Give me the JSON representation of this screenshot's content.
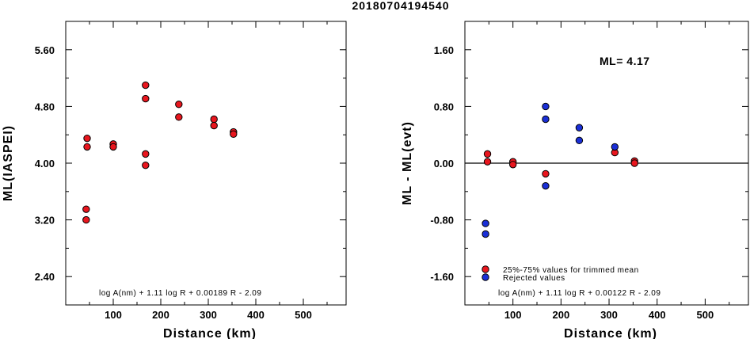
{
  "title": "20180704194540",
  "chart_data": [
    {
      "type": "scatter",
      "ylabel": "ML(IASPEI)",
      "xlabel": "Distance (km)",
      "xlim": [
        0,
        590
      ],
      "ylim": [
        2.0,
        6.0
      ],
      "xticks": [
        100,
        200,
        300,
        400,
        500
      ],
      "yticks": [
        2.4,
        3.2,
        4.0,
        4.8,
        5.6
      ],
      "ytick_labels": [
        "2.40",
        "3.20",
        "4.00",
        "4.80",
        "5.60"
      ],
      "formula": "log A(nm) + 1.11 log R + 0.00189 R - 2.09",
      "series": [
        {
          "color": "#e8161e",
          "points": [
            [
              45,
              4.35
            ],
            [
              45,
              4.23
            ],
            [
              43,
              3.35
            ],
            [
              43,
              3.2
            ],
            [
              100,
              4.27
            ],
            [
              100,
              4.23
            ],
            [
              168,
              5.1
            ],
            [
              168,
              4.91
            ],
            [
              168,
              4.13
            ],
            [
              168,
              3.97
            ],
            [
              238,
              4.83
            ],
            [
              238,
              4.65
            ],
            [
              312,
              4.62
            ],
            [
              312,
              4.53
            ],
            [
              353,
              4.44
            ],
            [
              353,
              4.41
            ]
          ]
        }
      ]
    },
    {
      "type": "scatter",
      "ylabel": "ML - ML(evt)",
      "xlabel": "Distance (km)",
      "xlim": [
        0,
        590
      ],
      "ylim": [
        -2.0,
        2.0
      ],
      "xticks": [
        100,
        200,
        300,
        400,
        500
      ],
      "yticks": [
        -1.6,
        -0.8,
        0.0,
        0.8,
        1.6
      ],
      "ytick_labels": [
        "-1.60",
        "-0.80",
        "0.00",
        "0.80",
        "1.60"
      ],
      "annotation": "ML= 4.17",
      "formula": "log A(nm) + 1.11 log R + 0.00122 R - 2.09",
      "zero_line": true,
      "series": [
        {
          "name": "25%-75% values for trimmed mean",
          "color": "#e8161e",
          "points": [
            [
              47,
              0.13
            ],
            [
              47,
              0.02
            ],
            [
              100,
              0.02
            ],
            [
              100,
              -0.02
            ],
            [
              168,
              -0.15
            ],
            [
              312,
              0.15
            ],
            [
              353,
              0.03
            ],
            [
              353,
              0.0
            ]
          ]
        },
        {
          "name": "Rejected values",
          "color": "#1a2fd6",
          "points": [
            [
              43,
              -0.85
            ],
            [
              43,
              -1.0
            ],
            [
              168,
              0.8
            ],
            [
              168,
              0.62
            ],
            [
              168,
              -0.32
            ],
            [
              238,
              0.5
            ],
            [
              238,
              0.32
            ],
            [
              312,
              0.23
            ]
          ]
        }
      ]
    }
  ]
}
